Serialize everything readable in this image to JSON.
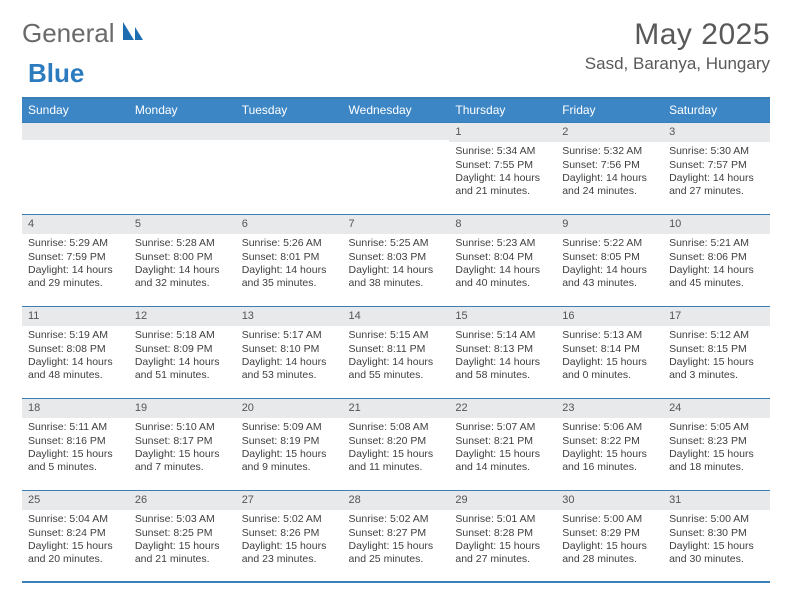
{
  "logo": {
    "general": "General",
    "blue": "Blue"
  },
  "title": "May 2025",
  "location": "Sasd, Baranya, Hungary",
  "colors": {
    "header_bg": "#3d86c6",
    "header_text": "#ffffff",
    "border": "#3a7fb5",
    "band_bg": "#e8e9eb",
    "text": "#3f3f3f",
    "logo_gray": "#6a6a6a",
    "logo_blue": "#2d7bbf"
  },
  "weekdays": [
    "Sunday",
    "Monday",
    "Tuesday",
    "Wednesday",
    "Thursday",
    "Friday",
    "Saturday"
  ],
  "first_weekday_index": 4,
  "days_in_month": 31,
  "days": [
    {
      "n": 1,
      "sunrise": "5:34 AM",
      "sunset": "7:55 PM",
      "daylight_h": 14,
      "daylight_m": 21
    },
    {
      "n": 2,
      "sunrise": "5:32 AM",
      "sunset": "7:56 PM",
      "daylight_h": 14,
      "daylight_m": 24
    },
    {
      "n": 3,
      "sunrise": "5:30 AM",
      "sunset": "7:57 PM",
      "daylight_h": 14,
      "daylight_m": 27
    },
    {
      "n": 4,
      "sunrise": "5:29 AM",
      "sunset": "7:59 PM",
      "daylight_h": 14,
      "daylight_m": 29
    },
    {
      "n": 5,
      "sunrise": "5:28 AM",
      "sunset": "8:00 PM",
      "daylight_h": 14,
      "daylight_m": 32
    },
    {
      "n": 6,
      "sunrise": "5:26 AM",
      "sunset": "8:01 PM",
      "daylight_h": 14,
      "daylight_m": 35
    },
    {
      "n": 7,
      "sunrise": "5:25 AM",
      "sunset": "8:03 PM",
      "daylight_h": 14,
      "daylight_m": 38
    },
    {
      "n": 8,
      "sunrise": "5:23 AM",
      "sunset": "8:04 PM",
      "daylight_h": 14,
      "daylight_m": 40
    },
    {
      "n": 9,
      "sunrise": "5:22 AM",
      "sunset": "8:05 PM",
      "daylight_h": 14,
      "daylight_m": 43
    },
    {
      "n": 10,
      "sunrise": "5:21 AM",
      "sunset": "8:06 PM",
      "daylight_h": 14,
      "daylight_m": 45
    },
    {
      "n": 11,
      "sunrise": "5:19 AM",
      "sunset": "8:08 PM",
      "daylight_h": 14,
      "daylight_m": 48
    },
    {
      "n": 12,
      "sunrise": "5:18 AM",
      "sunset": "8:09 PM",
      "daylight_h": 14,
      "daylight_m": 51
    },
    {
      "n": 13,
      "sunrise": "5:17 AM",
      "sunset": "8:10 PM",
      "daylight_h": 14,
      "daylight_m": 53
    },
    {
      "n": 14,
      "sunrise": "5:15 AM",
      "sunset": "8:11 PM",
      "daylight_h": 14,
      "daylight_m": 55
    },
    {
      "n": 15,
      "sunrise": "5:14 AM",
      "sunset": "8:13 PM",
      "daylight_h": 14,
      "daylight_m": 58
    },
    {
      "n": 16,
      "sunrise": "5:13 AM",
      "sunset": "8:14 PM",
      "daylight_h": 15,
      "daylight_m": 0
    },
    {
      "n": 17,
      "sunrise": "5:12 AM",
      "sunset": "8:15 PM",
      "daylight_h": 15,
      "daylight_m": 3
    },
    {
      "n": 18,
      "sunrise": "5:11 AM",
      "sunset": "8:16 PM",
      "daylight_h": 15,
      "daylight_m": 5
    },
    {
      "n": 19,
      "sunrise": "5:10 AM",
      "sunset": "8:17 PM",
      "daylight_h": 15,
      "daylight_m": 7
    },
    {
      "n": 20,
      "sunrise": "5:09 AM",
      "sunset": "8:19 PM",
      "daylight_h": 15,
      "daylight_m": 9
    },
    {
      "n": 21,
      "sunrise": "5:08 AM",
      "sunset": "8:20 PM",
      "daylight_h": 15,
      "daylight_m": 11
    },
    {
      "n": 22,
      "sunrise": "5:07 AM",
      "sunset": "8:21 PM",
      "daylight_h": 15,
      "daylight_m": 14
    },
    {
      "n": 23,
      "sunrise": "5:06 AM",
      "sunset": "8:22 PM",
      "daylight_h": 15,
      "daylight_m": 16
    },
    {
      "n": 24,
      "sunrise": "5:05 AM",
      "sunset": "8:23 PM",
      "daylight_h": 15,
      "daylight_m": 18
    },
    {
      "n": 25,
      "sunrise": "5:04 AM",
      "sunset": "8:24 PM",
      "daylight_h": 15,
      "daylight_m": 20
    },
    {
      "n": 26,
      "sunrise": "5:03 AM",
      "sunset": "8:25 PM",
      "daylight_h": 15,
      "daylight_m": 21
    },
    {
      "n": 27,
      "sunrise": "5:02 AM",
      "sunset": "8:26 PM",
      "daylight_h": 15,
      "daylight_m": 23
    },
    {
      "n": 28,
      "sunrise": "5:02 AM",
      "sunset": "8:27 PM",
      "daylight_h": 15,
      "daylight_m": 25
    },
    {
      "n": 29,
      "sunrise": "5:01 AM",
      "sunset": "8:28 PM",
      "daylight_h": 15,
      "daylight_m": 27
    },
    {
      "n": 30,
      "sunrise": "5:00 AM",
      "sunset": "8:29 PM",
      "daylight_h": 15,
      "daylight_m": 28
    },
    {
      "n": 31,
      "sunrise": "5:00 AM",
      "sunset": "8:30 PM",
      "daylight_h": 15,
      "daylight_m": 30
    }
  ],
  "labels": {
    "sunrise": "Sunrise",
    "sunset": "Sunset",
    "daylight": "Daylight",
    "hours": "hours",
    "and": "and",
    "minutes": "minutes"
  }
}
